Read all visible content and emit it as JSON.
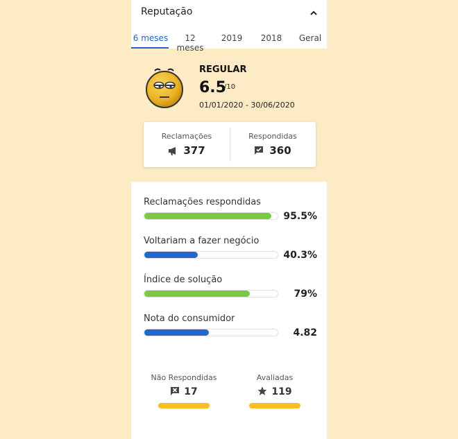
{
  "colors": {
    "green": "#7ac943",
    "blue": "#2467c8",
    "yellow": "#f9bd25",
    "accent": "#1e63c9"
  },
  "header": {
    "title": "Reputação",
    "toggle_icon": "chevron-up-icon"
  },
  "tabs": [
    {
      "label": "6 meses",
      "active": true
    },
    {
      "label": "12 meses",
      "active": false
    },
    {
      "label": "2019",
      "active": false
    },
    {
      "label": "2018",
      "active": false
    },
    {
      "label": "Geral",
      "active": false
    }
  ],
  "reputation": {
    "status": "REGULAR",
    "score": "6.5",
    "max": "/10",
    "period": "01/01/2020 - 30/06/2020",
    "face_icon": "regular-face-icon"
  },
  "counts": {
    "complaints": {
      "label": "Reclamações",
      "value": "377",
      "icon": "megaphone-icon"
    },
    "answered": {
      "label": "Respondidas",
      "value": "360",
      "icon": "answered-chat-icon"
    }
  },
  "metrics": [
    {
      "label": "Reclamações respondidas",
      "value": "95.5%",
      "fraction": 0.955,
      "color": "green"
    },
    {
      "label": "Voltariam a fazer negócio",
      "value": "40.3%",
      "fraction": 0.403,
      "color": "blue"
    },
    {
      "label": "Índice de solução",
      "value": "79%",
      "fraction": 0.79,
      "color": "green"
    },
    {
      "label": "Nota do consumidor",
      "value": "4.82",
      "fraction": 0.482,
      "color": "blue"
    }
  ],
  "bottom": {
    "not_answered": {
      "label": "Não Respondidas",
      "value": "17",
      "icon": "unanswered-chat-icon"
    },
    "rated": {
      "label": "Avaliadas",
      "value": "119",
      "icon": "star-icon"
    }
  }
}
